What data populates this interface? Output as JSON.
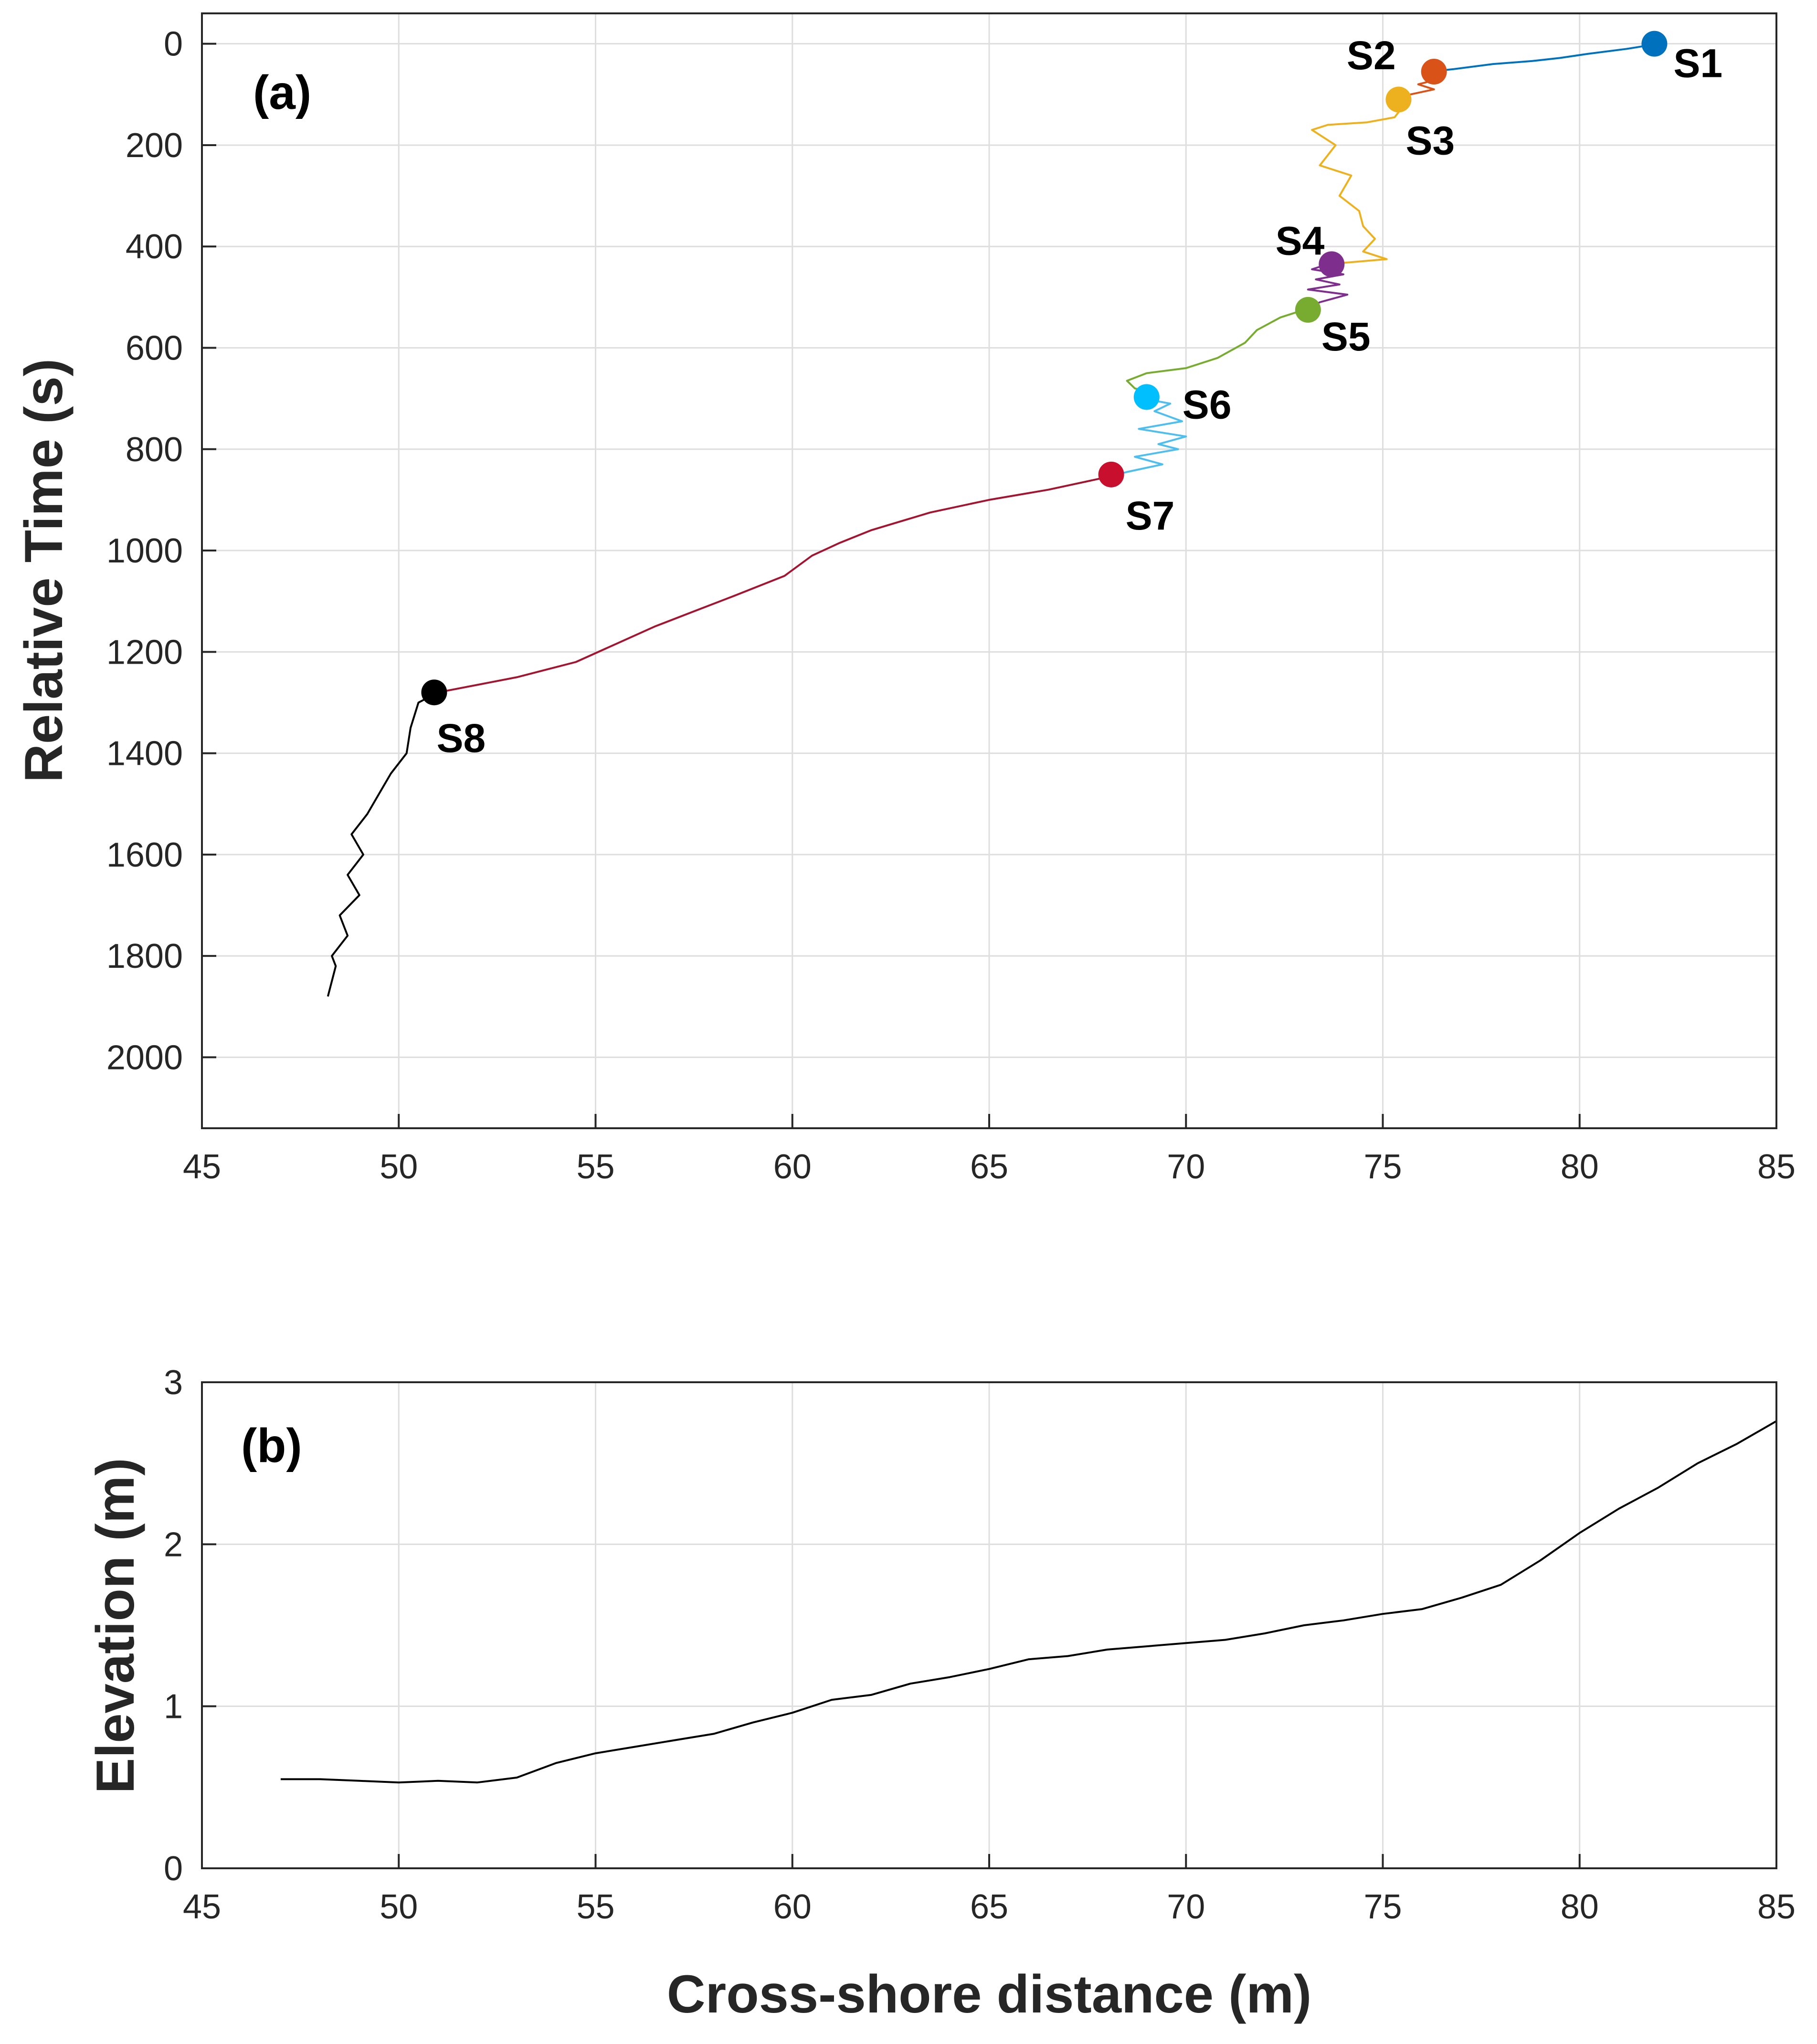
{
  "chart_data": [
    {
      "type": "line",
      "panel_label": "(a)",
      "xlabel": "",
      "ylabel": "Relative Time (s)",
      "xlim": [
        45,
        85
      ],
      "ylim": [
        -60,
        2140
      ],
      "y_reversed": true,
      "grid": true,
      "xticks": [
        45,
        50,
        55,
        60,
        65,
        70,
        75,
        80,
        85
      ],
      "yticks": [
        0,
        200,
        400,
        600,
        800,
        1000,
        1200,
        1400,
        1600,
        1800,
        2000
      ],
      "series": [
        {
          "color": "#0072BD",
          "x": [
            82.0,
            81.2,
            80.2,
            79.5,
            78.8,
            77.8,
            76.8,
            76.2
          ],
          "y": [
            0,
            10,
            20,
            28,
            34,
            40,
            50,
            55
          ]
        },
        {
          "color": "#D95319",
          "x": [
            76.2,
            76.5,
            75.9,
            76.3,
            75.7,
            75.4
          ],
          "y": [
            55,
            68,
            80,
            90,
            100,
            110
          ]
        },
        {
          "color": "#EDB120",
          "x": [
            75.4,
            75.5,
            75.3,
            74.6,
            73.6,
            73.2,
            73.8,
            73.4,
            74.2,
            73.9,
            74.4,
            74.5,
            74.8,
            74.5,
            75.1,
            73.6
          ],
          "y": [
            110,
            125,
            145,
            155,
            160,
            170,
            200,
            240,
            260,
            300,
            330,
            360,
            385,
            410,
            425,
            435
          ]
        },
        {
          "color": "#7E2F8E",
          "x": [
            73.6,
            73.2,
            74.0,
            73.3,
            73.9,
            73.1,
            74.1,
            73.4,
            73.0
          ],
          "y": [
            435,
            445,
            455,
            465,
            475,
            485,
            495,
            510,
            525
          ]
        },
        {
          "color": "#77AC30",
          "x": [
            73.0,
            72.4,
            71.8,
            71.5,
            70.8,
            70.0,
            69.0,
            68.5,
            68.7,
            69.2,
            68.9
          ],
          "y": [
            525,
            540,
            565,
            590,
            620,
            640,
            650,
            665,
            680,
            690,
            700
          ]
        },
        {
          "color": "#4DBEEE",
          "x": [
            68.9,
            69.6,
            69.2,
            69.9,
            68.8,
            70.0,
            69.3,
            69.8,
            68.7,
            69.4,
            68.5,
            68.0
          ],
          "y": [
            700,
            710,
            725,
            745,
            760,
            775,
            790,
            800,
            815,
            830,
            845,
            855
          ]
        },
        {
          "color": "#A2142F",
          "x": [
            68.0,
            66.5,
            65.0,
            63.5,
            62.0,
            61.2,
            60.5,
            59.8,
            58.5,
            57.5,
            56.5,
            55.5,
            54.5,
            53.0,
            51.0
          ],
          "y": [
            855,
            880,
            900,
            925,
            960,
            985,
            1010,
            1050,
            1090,
            1120,
            1150,
            1185,
            1220,
            1250,
            1280
          ]
        },
        {
          "color": "#000000",
          "x": [
            51.0,
            50.5,
            50.3,
            50.2,
            49.8,
            49.5,
            49.2,
            48.8,
            49.1,
            48.7,
            49.0,
            48.5,
            48.7,
            48.3,
            48.4,
            48.2
          ],
          "y": [
            1280,
            1300,
            1350,
            1400,
            1440,
            1480,
            1520,
            1560,
            1600,
            1640,
            1680,
            1720,
            1760,
            1800,
            1820,
            1880
          ]
        }
      ],
      "stops": [
        {
          "label": "S1",
          "x": 81.9,
          "y": 0,
          "color": "#0072BD"
        },
        {
          "label": "S2",
          "x": 76.3,
          "y": 55,
          "color": "#D95319"
        },
        {
          "label": "S3",
          "x": 75.4,
          "y": 110,
          "color": "#EDB120"
        },
        {
          "label": "S4",
          "x": 73.7,
          "y": 435,
          "color": "#7E2F8E"
        },
        {
          "label": "S5",
          "x": 73.1,
          "y": 525,
          "color": "#77AC30"
        },
        {
          "label": "S6",
          "x": 69.0,
          "y": 697,
          "color": "#00BFFF"
        },
        {
          "label": "S7",
          "x": 68.1,
          "y": 850,
          "color": "#C8102E"
        },
        {
          "label": "S8",
          "x": 50.9,
          "y": 1280,
          "color": "#000000"
        }
      ]
    },
    {
      "type": "line",
      "panel_label": "(b)",
      "xlabel": "Cross-shore distance (m)",
      "ylabel": "Elevation (m)",
      "xlim": [
        45,
        85
      ],
      "ylim": [
        0,
        3
      ],
      "grid": true,
      "xticks": [
        45,
        50,
        55,
        60,
        65,
        70,
        75,
        80,
        85
      ],
      "yticks": [
        0,
        1,
        2,
        3
      ],
      "series": [
        {
          "color": "#000000",
          "x": [
            47,
            48,
            49,
            50,
            51,
            52,
            53,
            54,
            55,
            56,
            57,
            58,
            59,
            60,
            61,
            62,
            63,
            64,
            65,
            66,
            67,
            68,
            69,
            70,
            71,
            72,
            73,
            74,
            75,
            76,
            77,
            78,
            79,
            80,
            81,
            82,
            83,
            84,
            85
          ],
          "y": [
            0.55,
            0.55,
            0.54,
            0.53,
            0.54,
            0.53,
            0.56,
            0.65,
            0.71,
            0.75,
            0.79,
            0.83,
            0.9,
            0.96,
            1.04,
            1.07,
            1.14,
            1.18,
            1.23,
            1.29,
            1.31,
            1.35,
            1.37,
            1.39,
            1.41,
            1.45,
            1.5,
            1.53,
            1.57,
            1.6,
            1.67,
            1.75,
            1.9,
            2.07,
            2.22,
            2.35,
            2.5,
            2.62,
            2.76
          ]
        }
      ]
    }
  ]
}
